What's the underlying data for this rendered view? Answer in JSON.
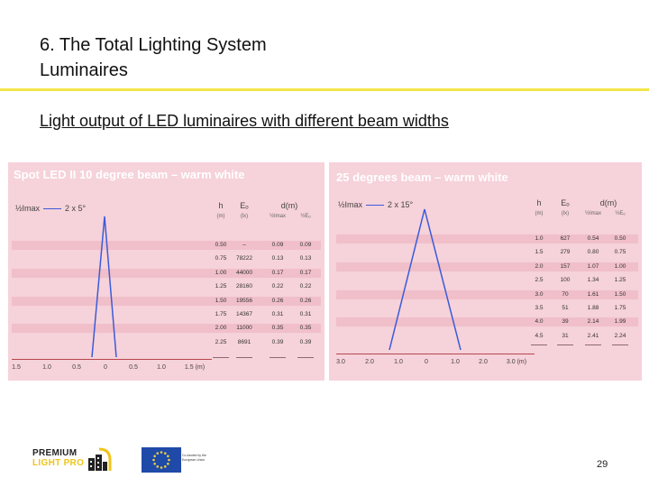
{
  "slide": {
    "title_line1": "6. The Total Lighting System",
    "title_line2": "Luminaires",
    "subtitle": "Light output of LED luminaires with different beam widths",
    "page_number": "29"
  },
  "left_panel": {
    "title": "Spot LED II 10 degree beam – warm white",
    "legend": "½Imax",
    "legend_value": "2 x 5°",
    "headers": [
      "h",
      "Eₒ",
      "d(m)"
    ],
    "subheaders": [
      "(m)",
      "(lx)",
      "½Imax",
      "½Eₒ"
    ],
    "rows": [
      [
        "0.50",
        "–",
        "0.09",
        "0.09"
      ],
      [
        "0.75",
        "78222",
        "0.13",
        "0.13"
      ],
      [
        "1.00",
        "44000",
        "0.17",
        "0.17"
      ],
      [
        "1.25",
        "28160",
        "0.22",
        "0.22"
      ],
      [
        "1.50",
        "19556",
        "0.26",
        "0.26"
      ],
      [
        "1.75",
        "14367",
        "0.31",
        "0.31"
      ],
      [
        "2.00",
        "11000",
        "0.35",
        "0.35"
      ],
      [
        "2.25",
        "8691",
        "0.39",
        "0.39"
      ]
    ],
    "x_labels": [
      "1.5",
      "1.0",
      "0.5",
      "0",
      "0.5",
      "1.0",
      "1.5 (m)"
    ],
    "beam_color": "#3b5bd9"
  },
  "right_panel": {
    "title": "25 degrees beam – warm white",
    "legend": "½Imax",
    "legend_value": "2 x 15°",
    "headers": [
      "h",
      "Eₒ",
      "d(m)"
    ],
    "subheaders": [
      "(m)",
      "(lx)",
      "½Imax",
      "½Eₒ"
    ],
    "rows": [
      [
        "1.0",
        "627",
        "0.54",
        "0.50"
      ],
      [
        "1.5",
        "279",
        "0.80",
        "0.75"
      ],
      [
        "2.0",
        "157",
        "1.07",
        "1.00"
      ],
      [
        "2.5",
        "100",
        "1.34",
        "1.25"
      ],
      [
        "3.0",
        "70",
        "1.61",
        "1.50"
      ],
      [
        "3.5",
        "51",
        "1.88",
        "1.75"
      ],
      [
        "4.0",
        "39",
        "2.14",
        "1.99"
      ],
      [
        "4.5",
        "31",
        "2.41",
        "2.24"
      ]
    ],
    "x_labels": [
      "3.0",
      "2.0",
      "1.0",
      "0",
      "1.0",
      "2.0",
      "3.0 (m)"
    ],
    "beam_color": "#3b5bd9"
  },
  "footer": {
    "premium_logo_line1": "PREMIUM",
    "premium_logo_line2": "LIGHT PRO",
    "eu_text": "Co-funded by the European Union",
    "eu_flag_color": "#1f4aa8",
    "star_color": "#f4d03f"
  }
}
